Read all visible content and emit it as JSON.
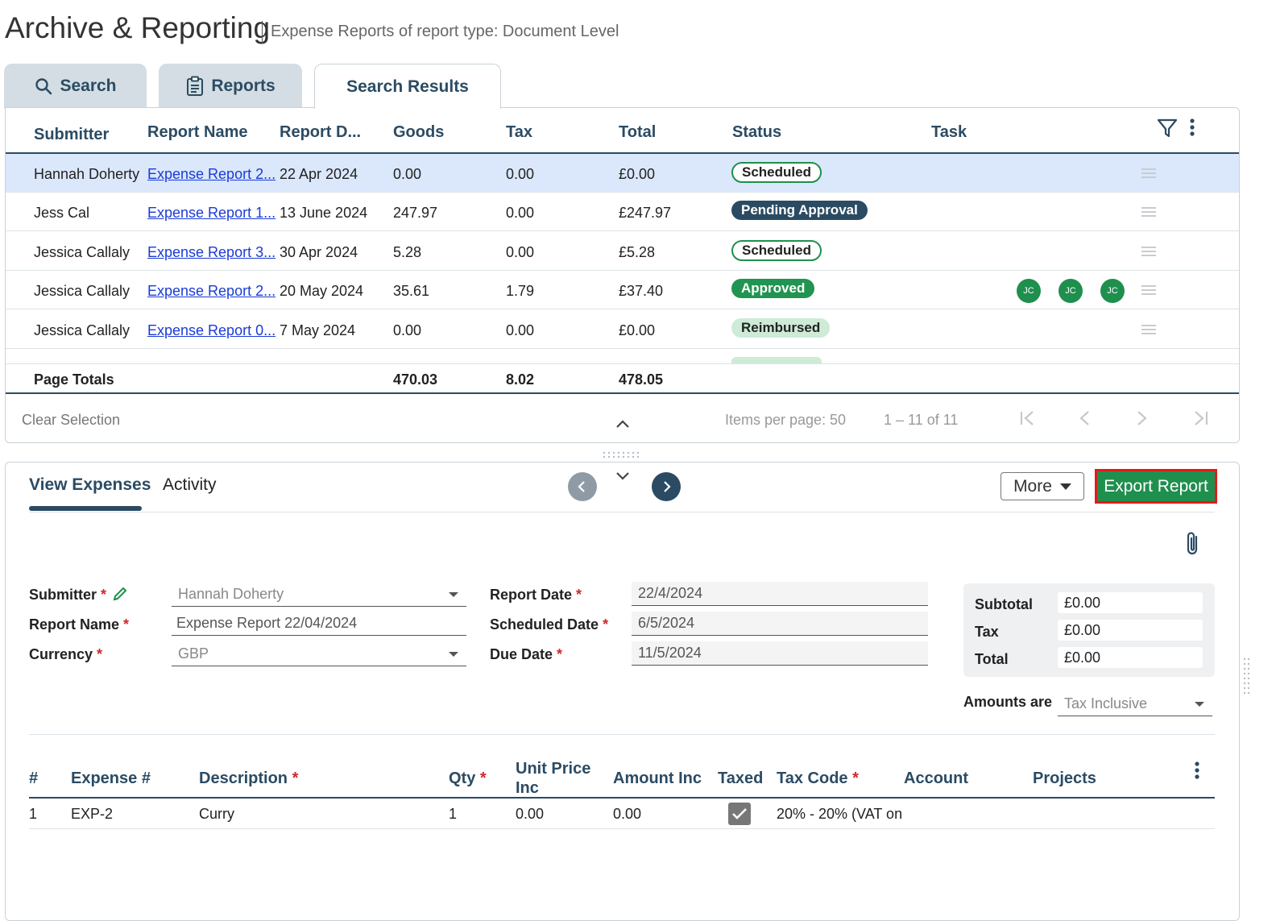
{
  "header": {
    "title": "Archive & Reporting",
    "subtitle": "Expense Reports of report type: Document Level"
  },
  "tabs": [
    {
      "label": "Search",
      "icon": "search-icon"
    },
    {
      "label": "Reports",
      "icon": "clipboard-icon"
    },
    {
      "label": "Search Results"
    }
  ],
  "results": {
    "columns": [
      "Submitter",
      "Report Name",
      "Report D...",
      "Goods",
      "Tax",
      "Total",
      "Status",
      "Task"
    ],
    "rows": [
      {
        "submitter": "Hannah Doherty",
        "report_name": "Expense Report 2...",
        "date": "22 Apr 2024",
        "goods": "0.00",
        "tax": "0.00",
        "total": "£0.00",
        "status": "Scheduled",
        "status_type": "scheduled",
        "tasks": []
      },
      {
        "submitter": "Jess Cal",
        "report_name": "Expense Report 1...",
        "date": "13 June 2024",
        "goods": "247.97",
        "tax": "0.00",
        "total": "£247.97",
        "status": "Pending Approval",
        "status_type": "pending",
        "tasks": []
      },
      {
        "submitter": "Jessica Callaly",
        "report_name": "Expense Report 3...",
        "date": "30 Apr 2024",
        "goods": "5.28",
        "tax": "0.00",
        "total": "£5.28",
        "status": "Scheduled",
        "status_type": "scheduled",
        "tasks": []
      },
      {
        "submitter": "Jessica Callaly",
        "report_name": "Expense Report 2...",
        "date": "20 May 2024",
        "goods": "35.61",
        "tax": "1.79",
        "total": "£37.40",
        "status": "Approved",
        "status_type": "approved",
        "tasks": [
          "JC",
          "JC",
          "JC"
        ]
      },
      {
        "submitter": "Jessica Callaly",
        "report_name": "Expense Report 0...",
        "date": "7 May 2024",
        "goods": "0.00",
        "tax": "0.00",
        "total": "£0.00",
        "status": "Reimbursed",
        "status_type": "reimbursed",
        "tasks": []
      }
    ],
    "totals": {
      "label": "Page Totals",
      "goods": "470.03",
      "tax": "8.02",
      "total": "478.05"
    },
    "footer": {
      "clear_selection": "Clear Selection",
      "items_per_page_label": "Items per page:",
      "items_per_page": "50",
      "range": "1 – 11 of 11"
    }
  },
  "detail": {
    "tabs": [
      "View Expenses",
      "Activity"
    ],
    "more_label": "More",
    "export_label": "Export Report",
    "form": {
      "submitter_label": "Submitter",
      "submitter_value": "Hannah Doherty",
      "report_name_label": "Report Name",
      "report_name_value": "Expense Report 22/04/2024",
      "currency_label": "Currency",
      "currency_value": "GBP",
      "report_date_label": "Report Date",
      "report_date_value": "22/4/2024",
      "scheduled_date_label": "Scheduled Date",
      "scheduled_date_value": "6/5/2024",
      "due_date_label": "Due Date",
      "due_date_value": "11/5/2024",
      "required_mark": "*"
    },
    "summary": {
      "subtotal_label": "Subtotal",
      "subtotal_value": "£0.00",
      "tax_label": "Tax",
      "tax_value": "£0.00",
      "total_label": "Total",
      "total_value": "£0.00",
      "amounts_are_label": "Amounts are",
      "amounts_are_value": "Tax Inclusive"
    },
    "expenses": {
      "columns": {
        "num": "#",
        "expense_num": "Expense #",
        "description": "Description",
        "qty": "Qty",
        "unit_price_line1": "Unit Price",
        "unit_price_line2": "Inc",
        "amount_inc": "Amount Inc",
        "taxed": "Taxed",
        "tax_code": "Tax Code",
        "account": "Account",
        "projects": "Projects"
      },
      "rows": [
        {
          "num": "1",
          "expense_num": "EXP-2",
          "description": "Curry",
          "qty": "1",
          "unit_price": "0.00",
          "amount_inc": "0.00",
          "taxed": true,
          "tax_code": "20% - 20% (VAT on"
        }
      ]
    }
  },
  "colors": {
    "navy": "#2b4b63",
    "green": "#1f8f4e",
    "selected_row": "#dbe7fb",
    "link": "#1a3bd6",
    "highlight_border": "#e21a1a"
  }
}
